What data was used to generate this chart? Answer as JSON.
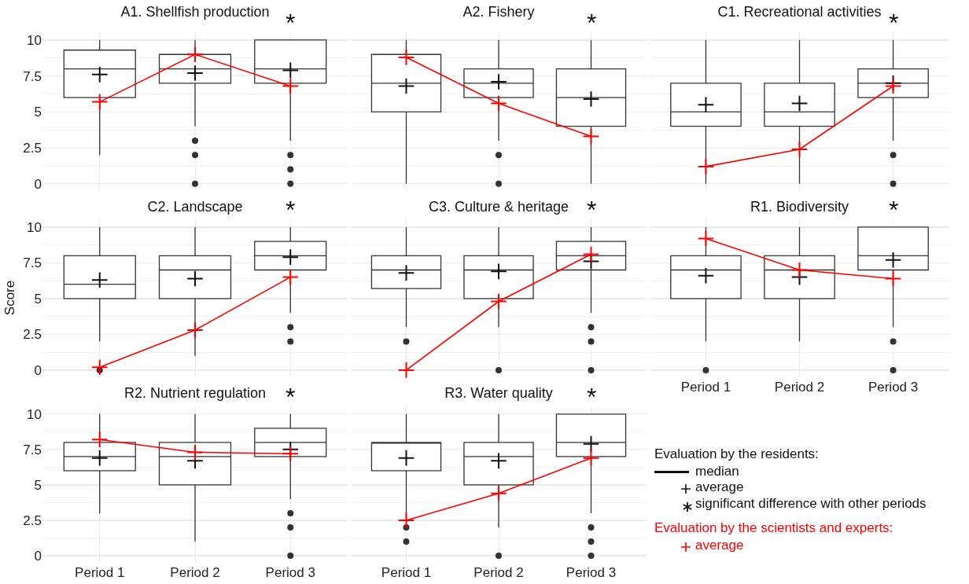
{
  "chart_data": [
    {
      "type": "box",
      "title": "A1. Shellfish production",
      "categories": [
        "Period 1",
        "Period 2",
        "Period 3"
      ],
      "ylim": [
        -0.5,
        10.6
      ],
      "yticks": [
        0,
        2.5,
        5,
        7.5,
        10
      ],
      "grid": true,
      "tick_labels": "y",
      "annotations": [
        {
          "text": "*",
          "x": "Period 3",
          "y": 10
        }
      ],
      "series": [
        {
          "type": "box",
          "color": "#333333",
          "boxes": [
            {
              "low": 2,
              "q1": 6,
              "median": 8,
              "q3": 9.3,
              "high": 10,
              "mean": 7.6
            },
            {
              "low": 4,
              "q1": 7,
              "median": 8,
              "q3": 9,
              "high": 10,
              "mean": 7.7,
              "outliers": [
                3,
                2,
                0
              ]
            },
            {
              "low": 3,
              "q1": 7,
              "median": 8,
              "q3": 10,
              "high": 10,
              "mean": 7.9,
              "outliers": [
                2,
                1,
                0
              ]
            }
          ]
        },
        {
          "type": "line",
          "color": "#ff0000",
          "marker": "cross",
          "values": [
            5.7,
            9,
            6.8
          ]
        }
      ]
    },
    {
      "type": "box",
      "title": "A2. Fishery",
      "categories": [
        "Period 1",
        "Period 2",
        "Period 3"
      ],
      "ylim": [
        -0.5,
        10.6
      ],
      "yticks": [
        0,
        2.5,
        5,
        7.5,
        10
      ],
      "grid": true,
      "tick_labels": false,
      "annotations": [
        {
          "text": "*",
          "x": "Period 3",
          "y": 10
        }
      ],
      "series": [
        {
          "type": "box",
          "color": "#333333",
          "boxes": [
            {
              "low": 0,
              "q1": 5,
              "median": 7,
              "q3": 9,
              "high": 10,
              "mean": 6.8
            },
            {
              "low": 3,
              "q1": 6,
              "median": 7,
              "q3": 8,
              "high": 10,
              "mean": 7.1,
              "outliers": [
                2,
                0
              ]
            },
            {
              "low": 0,
              "q1": 4,
              "median": 6,
              "q3": 8,
              "high": 10,
              "mean": 5.9
            }
          ]
        },
        {
          "type": "line",
          "color": "#ff0000",
          "marker": "cross",
          "values": [
            8.8,
            5.6,
            3.3
          ]
        }
      ]
    },
    {
      "type": "box",
      "title": "C1. Recreational activities",
      "categories": [
        "Period 1",
        "Period 2",
        "Period 3"
      ],
      "ylim": [
        -0.5,
        10.6
      ],
      "yticks": [
        0,
        2.5,
        5,
        7.5,
        10
      ],
      "grid": true,
      "tick_labels": false,
      "annotations": [
        {
          "text": "*",
          "x": "Period 3",
          "y": 10
        }
      ],
      "series": [
        {
          "type": "box",
          "color": "#333333",
          "boxes": [
            {
              "low": 0,
              "q1": 4,
              "median": 5,
              "q3": 7,
              "high": 10,
              "mean": 5.5
            },
            {
              "low": 0,
              "q1": 4,
              "median": 5,
              "q3": 7,
              "high": 10,
              "mean": 5.6
            },
            {
              "low": 3,
              "q1": 6,
              "median": 7,
              "q3": 8,
              "high": 10,
              "mean": 7,
              "outliers": [
                2,
                0
              ]
            }
          ]
        },
        {
          "type": "line",
          "color": "#ff0000",
          "marker": "cross",
          "values": [
            1.2,
            2.4,
            6.8
          ]
        }
      ]
    },
    {
      "type": "box",
      "title": "C2. Landscape",
      "ylabel": "Score",
      "categories": [
        "Period 1",
        "Period 2",
        "Period 3"
      ],
      "ylim": [
        -0.5,
        10.6
      ],
      "yticks": [
        0,
        2.5,
        5,
        7.5,
        10
      ],
      "grid": true,
      "tick_labels": "y",
      "annotations": [
        {
          "text": "*",
          "x": "Period 3",
          "y": 10
        }
      ],
      "series": [
        {
          "type": "box",
          "color": "#333333",
          "boxes": [
            {
              "low": 2,
              "q1": 5,
              "median": 6,
              "q3": 8,
              "high": 10,
              "mean": 6.3,
              "outliers": [
                0
              ]
            },
            {
              "low": 1,
              "q1": 5,
              "median": 7,
              "q3": 8,
              "high": 10,
              "mean": 6.4
            },
            {
              "low": 4,
              "q1": 7,
              "median": 8,
              "q3": 9,
              "high": 10,
              "mean": 7.9,
              "outliers": [
                3,
                2
              ]
            }
          ]
        },
        {
          "type": "line",
          "color": "#ff0000",
          "marker": "cross",
          "values": [
            0.2,
            2.8,
            6.5
          ]
        }
      ]
    },
    {
      "type": "box",
      "title": "C3. Culture & heritage",
      "categories": [
        "Period 1",
        "Period 2",
        "Period 3"
      ],
      "ylim": [
        -0.5,
        10.6
      ],
      "yticks": [
        0,
        2.5,
        5,
        7.5,
        10
      ],
      "grid": true,
      "tick_labels": false,
      "annotations": [
        {
          "text": "*",
          "x": "Period 3",
          "y": 10
        }
      ],
      "series": [
        {
          "type": "box",
          "color": "#333333",
          "boxes": [
            {
              "low": 3,
              "q1": 5.7,
              "median": 7,
              "q3": 8,
              "high": 10,
              "mean": 6.8,
              "outliers": [
                2
              ]
            },
            {
              "low": 3,
              "q1": 5,
              "median": 7,
              "q3": 8,
              "high": 10,
              "mean": 6.9,
              "outliers": [
                0
              ]
            },
            {
              "low": 4,
              "q1": 7,
              "median": 8,
              "q3": 9,
              "high": 10,
              "mean": 7.6,
              "outliers": [
                3,
                2,
                0
              ]
            }
          ]
        },
        {
          "type": "line",
          "color": "#ff0000",
          "marker": "cross",
          "values": [
            0,
            4.8,
            8.1
          ]
        }
      ]
    },
    {
      "type": "box",
      "title": "R1. Biodiversity",
      "categories": [
        "Period 1",
        "Period 2",
        "Period 3"
      ],
      "ylim": [
        -0.5,
        10.6
      ],
      "yticks": [
        0,
        2.5,
        5,
        7.5,
        10
      ],
      "grid": true,
      "tick_labels": "x",
      "annotations": [
        {
          "text": "*",
          "x": "Period 3",
          "y": 10
        }
      ],
      "series": [
        {
          "type": "box",
          "color": "#333333",
          "boxes": [
            {
              "low": 2,
              "q1": 5,
              "median": 7,
              "q3": 8,
              "high": 10,
              "mean": 6.6,
              "outliers": [
                0
              ]
            },
            {
              "low": 2,
              "q1": 5,
              "median": 7,
              "q3": 8,
              "high": 10,
              "mean": 6.5
            },
            {
              "low": 3,
              "q1": 7,
              "median": 8,
              "q3": 10,
              "high": 10,
              "mean": 7.7,
              "outliers": [
                2,
                0
              ]
            }
          ]
        },
        {
          "type": "line",
          "color": "#ff0000",
          "marker": "cross",
          "values": [
            9.2,
            7,
            6.4
          ]
        }
      ]
    },
    {
      "type": "box",
      "title": "R2. Nutrient regulation",
      "categories": [
        "Period 1",
        "Period 2",
        "Period 3"
      ],
      "ylim": [
        -0.5,
        10.6
      ],
      "yticks": [
        0,
        2.5,
        5,
        7.5,
        10
      ],
      "grid": true,
      "annotations": [
        {
          "text": "*",
          "x": "Period 3",
          "y": 10
        }
      ],
      "series": [
        {
          "type": "box",
          "color": "#333333",
          "boxes": [
            {
              "low": 3,
              "q1": 6,
              "median": 7,
              "q3": 8,
              "high": 10,
              "mean": 6.9
            },
            {
              "low": 1,
              "q1": 5,
              "median": 7,
              "q3": 8,
              "high": 10,
              "mean": 6.7
            },
            {
              "low": 4,
              "q1": 7,
              "median": 8,
              "q3": 9,
              "high": 10,
              "mean": 7.5,
              "outliers": [
                3,
                2,
                0
              ]
            }
          ]
        },
        {
          "type": "line",
          "color": "#ff0000",
          "marker": "cross",
          "values": [
            8.2,
            7.3,
            7.2
          ]
        }
      ]
    },
    {
      "type": "box",
      "title": "R3. Water quality",
      "categories": [
        "Period 1",
        "Period 2",
        "Period 3"
      ],
      "ylim": [
        -0.5,
        10.6
      ],
      "yticks": [
        0,
        2.5,
        5,
        7.5,
        10
      ],
      "grid": true,
      "tick_labels": "x",
      "annotations": [
        {
          "text": "*",
          "x": "Period 3",
          "y": 10
        }
      ],
      "series": [
        {
          "type": "box",
          "color": "#333333",
          "boxes": [
            {
              "low": 3,
              "q1": 6,
              "median": 8,
              "q3": 8,
              "high": 10,
              "mean": 6.9,
              "outliers": [
                2,
                1
              ]
            },
            {
              "low": 2,
              "q1": 5,
              "median": 7,
              "q3": 8,
              "high": 10,
              "mean": 6.7,
              "outliers": [
                0
              ]
            },
            {
              "low": 3,
              "q1": 7,
              "median": 8,
              "q3": 10,
              "high": 10,
              "mean": 7.9,
              "outliers": [
                2,
                1,
                0
              ]
            }
          ]
        },
        {
          "type": "line",
          "color": "#ff0000",
          "marker": "cross",
          "values": [
            2.5,
            4.4,
            6.9
          ]
        }
      ]
    },
    {
      "type": "other",
      "annotations": [
        "Evaluation by the residents:",
        "median",
        "average",
        "significant difference with other periods",
        "Evaluation by the scientists and experts:",
        "average"
      ],
      "colors": [
        "#111111",
        "#111111",
        "#111111",
        "#111111",
        "#ff0000",
        "#ff0000"
      ]
    }
  ]
}
